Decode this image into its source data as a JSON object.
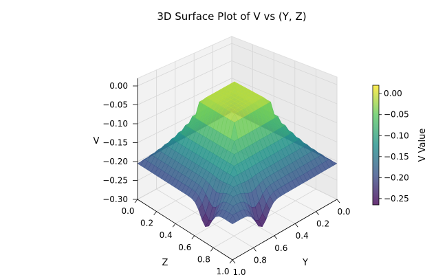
{
  "chart_data": {
    "type": "surface3d",
    "title": "3D Surface Plot of V vs (Y, Z)",
    "xlabel": "Y",
    "ylabel": "Z",
    "zlabel": "V",
    "colorbar_label": "V Value",
    "colormap": "viridis",
    "y_range": [
      0,
      1
    ],
    "z_range": [
      0,
      1
    ],
    "v_range": [
      -0.3,
      0.02
    ],
    "y_ticks": [
      "0.0",
      "0.2",
      "0.4",
      "0.6",
      "0.8",
      "1.0"
    ],
    "z_ticks": [
      "0.0",
      "0.2",
      "0.4",
      "0.6",
      "0.8",
      "1.0"
    ],
    "v_ticks": [
      "0.00",
      "−0.05",
      "−0.10",
      "−0.15",
      "−0.20",
      "−0.25",
      "−0.30"
    ],
    "colorbar_ticks": [
      "0.00",
      "−0.05",
      "−0.10",
      "−0.15",
      "−0.20",
      "−0.25"
    ],
    "colorbar_range": [
      -0.265,
      0.02
    ],
    "surface_description": {
      "center_level": -0.01,
      "edge_level": -0.2,
      "dip_minimum": -0.26
    },
    "grid": true
  }
}
